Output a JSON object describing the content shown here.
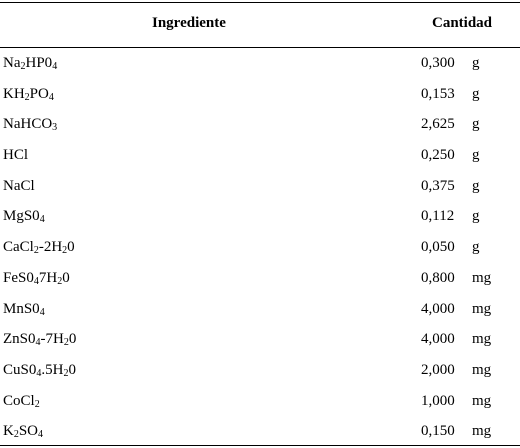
{
  "table": {
    "headers": {
      "ingredient": "Ingrediente",
      "quantity": "Cantidad"
    },
    "rows": [
      {
        "parts": [
          [
            "Na",
            ""
          ],
          [
            "2",
            "sub"
          ],
          [
            "HP0",
            ""
          ],
          [
            "4",
            "sub"
          ]
        ],
        "value": "0,300",
        "unit": "g"
      },
      {
        "parts": [
          [
            "KH",
            ""
          ],
          [
            "2",
            "sub"
          ],
          [
            "PO",
            ""
          ],
          [
            "4",
            "sub"
          ]
        ],
        "value": "0,153",
        "unit": "g"
      },
      {
        "parts": [
          [
            "NaHCO",
            ""
          ],
          [
            "3",
            "sub"
          ]
        ],
        "value": "2,625",
        "unit": "g"
      },
      {
        "parts": [
          [
            "HCl",
            ""
          ]
        ],
        "value": "0,250",
        "unit": "g"
      },
      {
        "parts": [
          [
            "NaCl",
            ""
          ]
        ],
        "value": "0,375",
        "unit": "g"
      },
      {
        "parts": [
          [
            "MgS0",
            ""
          ],
          [
            "4",
            "sub"
          ]
        ],
        "value": "0,112",
        "unit": "g"
      },
      {
        "parts": [
          [
            "CaCl",
            ""
          ],
          [
            "2",
            "sub"
          ],
          [
            "-2H",
            ""
          ],
          [
            "2",
            "sub"
          ],
          [
            "0",
            ""
          ]
        ],
        "value": "0,050",
        "unit": "g"
      },
      {
        "parts": [
          [
            "FeS0",
            ""
          ],
          [
            "4",
            "sub"
          ],
          [
            "7H",
            ""
          ],
          [
            "2",
            "sub"
          ],
          [
            "0",
            ""
          ]
        ],
        "value": "0,800",
        "unit": "mg"
      },
      {
        "parts": [
          [
            "MnS0",
            ""
          ],
          [
            "4",
            "sub"
          ]
        ],
        "value": "4,000",
        "unit": "mg"
      },
      {
        "parts": [
          [
            "ZnS0",
            ""
          ],
          [
            "4",
            "sub"
          ],
          [
            "-7H",
            ""
          ],
          [
            "2",
            "sub"
          ],
          [
            "0",
            ""
          ]
        ],
        "value": "4,000",
        "unit": "mg"
      },
      {
        "parts": [
          [
            "CuS0",
            ""
          ],
          [
            "4",
            "sub"
          ],
          [
            ".5H",
            ""
          ],
          [
            "2",
            "sub"
          ],
          [
            "0",
            ""
          ]
        ],
        "value": "2,000",
        "unit": "mg"
      },
      {
        "parts": [
          [
            "CoCl",
            ""
          ],
          [
            "2",
            "sub"
          ]
        ],
        "value": "1,000",
        "unit": "mg"
      },
      {
        "parts": [
          [
            "K",
            ""
          ],
          [
            "2",
            "sub"
          ],
          [
            "SO",
            ""
          ],
          [
            "4",
            "sub"
          ]
        ],
        "value": "0,150",
        "unit": "mg"
      }
    ]
  }
}
